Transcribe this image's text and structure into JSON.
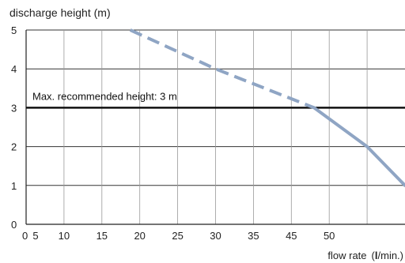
{
  "chart_data": {
    "type": "line",
    "ylabel": "discharge height (m)",
    "xlabel": "flow rate",
    "xlabel_unit_open": "(",
    "xlabel_unit": "l",
    "xlabel_unit_close": "/min.)",
    "xlim": [
      0,
      70
    ],
    "ylim": [
      0,
      5
    ],
    "x_ticks": [
      {
        "value": 0,
        "label": "0"
      },
      {
        "value": 2.5,
        "label": "5"
      },
      {
        "value": 10,
        "label": "10"
      },
      {
        "value": 20,
        "label": "15"
      },
      {
        "value": 30,
        "label": "20"
      },
      {
        "value": 40,
        "label": "25"
      },
      {
        "value": 50,
        "label": "30"
      },
      {
        "value": 60,
        "label": "35"
      },
      {
        "value": 70,
        "label": "45"
      },
      {
        "value": 80,
        "label": "50"
      }
    ],
    "x_grid": [
      10,
      20,
      30,
      40,
      50,
      60,
      70,
      80,
      90
    ],
    "y_ticks": [
      0,
      1,
      2,
      3,
      4,
      5
    ],
    "grid": true,
    "colors": {
      "curve": "#8fa5c4",
      "max_line": "#111111",
      "grid": "#333333"
    },
    "threshold": {
      "y": 3,
      "label": "Max. recommended height: 3 m"
    },
    "series": [
      {
        "values_dashed": [
          [
            27.5,
            5
          ],
          [
            50,
            4
          ],
          [
            76,
            3
          ]
        ],
        "values_solid": [
          [
            76,
            3
          ],
          [
            90,
            2
          ],
          [
            100,
            1
          ]
        ]
      }
    ]
  }
}
